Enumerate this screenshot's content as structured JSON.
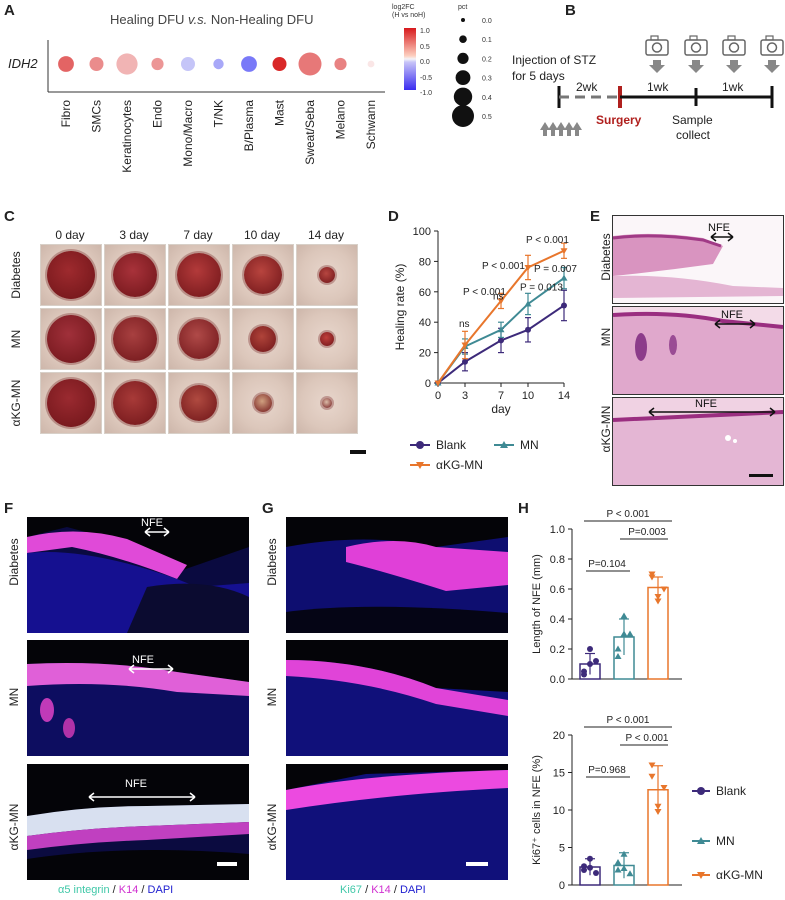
{
  "panels": {
    "A": "A",
    "B": "B",
    "C": "C",
    "D": "D",
    "E": "E",
    "F": "F",
    "G": "G",
    "H": "H"
  },
  "panelA": {
    "title_pre": "Healing DFU ",
    "title_em": "v.s.",
    "title_post": " Non-Healing DFU",
    "gene": "IDH2",
    "cells": [
      "Fibro",
      "SMCs",
      "Keratinocytes",
      "Endo",
      "Mono/Macro",
      "T/NK",
      "B/Plasma",
      "Mast",
      "Sweat/Seba",
      "Melano",
      "Schwann"
    ],
    "log2fc": [
      0.65,
      0.45,
      0.25,
      0.4,
      -0.2,
      -0.35,
      -0.6,
      0.95,
      0.55,
      0.5,
      0.0
    ],
    "pct": [
      0.3,
      0.25,
      0.45,
      0.2,
      0.25,
      0.15,
      0.3,
      0.25,
      0.5,
      0.2,
      0.05
    ],
    "colorbar_title": "log2FC",
    "colorbar_sub": "(H vs noH)",
    "colorbar_ticks": [
      "1.0",
      "0.5",
      "0.0",
      "-0.5",
      "-1.0"
    ],
    "size_title": "pct",
    "size_ticks": [
      "0.0",
      "0.1",
      "0.2",
      "0.3",
      "0.4",
      "0.5"
    ]
  },
  "panelB": {
    "injection_line1": "Injection of STZ",
    "injection_line2": "for 5 days",
    "seg1": "2wk",
    "seg2": "1wk",
    "seg3": "1wk",
    "surgery": "Surgery",
    "sample_line1": "Sample",
    "sample_line2": "collect"
  },
  "panelC": {
    "days": [
      "0 day",
      "3 day",
      "7 day",
      "10 day",
      "14 day"
    ],
    "groups": [
      "Diabetes",
      "MN",
      "αKG-MN"
    ]
  },
  "chart_data": {
    "type": "line",
    "xlabel": "day",
    "ylabel": "Healing rate (%)",
    "x": [
      0,
      3,
      7,
      10,
      14
    ],
    "xticks": [
      "0",
      "3",
      "7",
      "10",
      "14"
    ],
    "yticks": [
      "0",
      "20",
      "40",
      "60",
      "80",
      "100"
    ],
    "ylim": [
      0,
      100
    ],
    "series": [
      {
        "name": "Blank",
        "values": [
          0,
          14,
          28,
          35,
          51
        ],
        "err": [
          0,
          6,
          8,
          8,
          10
        ],
        "color": "#3d2a7a",
        "marker": "circle"
      },
      {
        "name": "MN",
        "values": [
          0,
          24,
          35,
          52,
          69
        ],
        "err": [
          0,
          5,
          5,
          7,
          7
        ],
        "color": "#3f8a94",
        "marker": "triangle"
      },
      {
        "name": "αKG-MN",
        "values": [
          0,
          25,
          54,
          76,
          87
        ],
        "err": [
          0,
          9,
          5,
          8,
          5
        ],
        "color": "#e8762c",
        "marker": "triangle-down"
      }
    ],
    "annotations": [
      "ns",
      "ns",
      "P < 0.001",
      "P = 0.013",
      "P < 0.001",
      "P = 0.007",
      "P < 0.001"
    ]
  },
  "panelD_ann": {
    "ns1": "ns",
    "ns2": "ns",
    "a7": "P < 0.001",
    "a10m": "P = 0.013",
    "a10": "P < 0.001",
    "a14m": "P = 0.007",
    "a14": "P < 0.001"
  },
  "panelE": {
    "groups": [
      "Diabetes",
      "MN",
      "αKG-MN"
    ],
    "nfe": "NFE"
  },
  "panelF": {
    "groups": [
      "Diabetes",
      "MN",
      "αKG-MN"
    ],
    "nfe": "NFE",
    "caption_a": "α5 integrin",
    "caption_sep1": " / ",
    "caption_b": "K14",
    "caption_sep2": " / ",
    "caption_c": "DAPI"
  },
  "panelG": {
    "groups": [
      "Diabetes",
      "MN",
      "αKG-MN"
    ],
    "caption_a": "Ki67",
    "caption_sep1": " / ",
    "caption_b": "K14",
    "caption_sep2": " / ",
    "caption_c": "DAPI"
  },
  "panelH": {
    "top": {
      "ylabel": "Length of NFE (mm)",
      "yticks": [
        "0.0",
        "0.2",
        "0.4",
        "0.6",
        "0.8",
        "1.0"
      ],
      "means": [
        0.1,
        0.28,
        0.61
      ],
      "sd": [
        0.07,
        0.12,
        0.07
      ],
      "points": [
        [
          0.05,
          0.2,
          0.12,
          0.03,
          0.1
        ],
        [
          0.2,
          0.42,
          0.3,
          0.15,
          0.3
        ],
        [
          0.7,
          0.55,
          0.6,
          0.68,
          0.52
        ]
      ],
      "p_all": "P < 0.001",
      "p_mn": "P=0.104",
      "p_kg": "P=0.003"
    },
    "bottom": {
      "ylabel": "Ki67⁺ cells in NFE (%)",
      "yticks": [
        "0",
        "5",
        "10",
        "15",
        "20"
      ],
      "means": [
        2.4,
        2.6,
        12.7
      ],
      "sd": [
        1.1,
        1.7,
        3.2
      ],
      "points": [
        [
          2,
          3.5,
          1.6,
          2.5,
          2.3
        ],
        [
          2,
          4.1,
          1.5,
          3,
          2.2
        ],
        [
          14.5,
          10.5,
          13,
          16,
          9.8
        ]
      ],
      "p_all": "P < 0.001",
      "p_mn": "P=0.968",
      "p_kg": "P < 0.001"
    },
    "legend": [
      "Blank",
      "MN",
      "αKG-MN"
    ],
    "colors": [
      "#3d2a7a",
      "#3f8a94",
      "#e8762c"
    ]
  }
}
